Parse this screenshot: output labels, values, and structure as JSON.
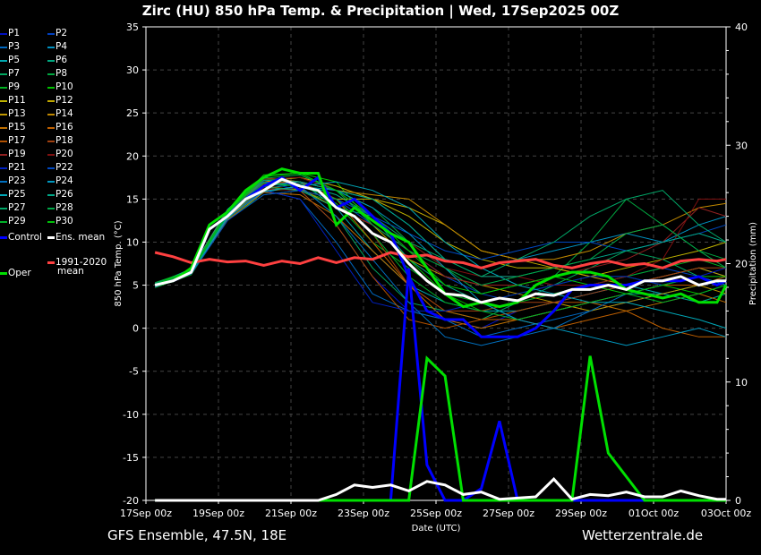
{
  "title": "Zirc  (HU)  850 hPa Temp. & Precipitation | Wed, 17Sep2025 00Z",
  "footer_left": "GFS Ensemble, 47.5N, 18E",
  "footer_right": "Wetterzentrale.de",
  "chart_data": {
    "type": "line",
    "xlabel": "Date (UTC)",
    "ylabel": "850 hPa Temp. (°C)",
    "y2label": "Precipitation (mm)",
    "ylim": [
      -20,
      35
    ],
    "y2lim": [
      0,
      40
    ],
    "xlim_hours": [
      0,
      384
    ],
    "x_ticks": [
      "17Sep 00z",
      "19Sep 00z",
      "21Sep 00z",
      "23Sep 00z",
      "25Sep 00z",
      "27Sep 00z",
      "29Sep 00z",
      "01Oct 00z",
      "03Oct 00z"
    ],
    "y_ticks": [
      35,
      30,
      25,
      20,
      15,
      10,
      5,
      0,
      -5,
      -10,
      -15,
      -20
    ],
    "y2_ticks": [
      40,
      30,
      20,
      10,
      0
    ],
    "grid": true,
    "hours_main": [
      6,
      18,
      30,
      42,
      54,
      66,
      78,
      90,
      102,
      114,
      126,
      138,
      150,
      162,
      174,
      186,
      198,
      210,
      222,
      234,
      246,
      258,
      270,
      282,
      294,
      306,
      318,
      330,
      342,
      354,
      366,
      378,
      384
    ],
    "hours_members": [
      6,
      30,
      54,
      78,
      102,
      126,
      150,
      174,
      198,
      222,
      246,
      270,
      294,
      318,
      342,
      366,
      384
    ],
    "main_series": [
      {
        "name": "Control",
        "color": "#0000ff",
        "width": 3,
        "temp": [
          5,
          5.5,
          6.5,
          11.5,
          13,
          15,
          16.5,
          17.5,
          16,
          17.5,
          14,
          15,
          13,
          11,
          6,
          2,
          1,
          1,
          -1,
          -1,
          -1,
          0,
          2,
          4.5,
          5,
          5,
          5,
          5.5,
          5.5,
          5.5,
          6,
          5,
          5.5
        ],
        "precip": [
          0,
          0,
          0,
          0,
          0,
          0,
          0,
          0,
          0,
          0,
          0,
          0,
          0,
          0,
          19.6,
          3,
          0,
          0,
          1,
          6.7,
          0,
          0,
          0,
          0,
          0,
          0,
          0,
          0,
          0,
          0,
          0,
          0,
          0
        ]
      },
      {
        "name": "Oper",
        "color": "#00e000",
        "width": 3,
        "temp": [
          5,
          5.5,
          7,
          12,
          13.5,
          16,
          17.5,
          18.5,
          18,
          18,
          12,
          14,
          12.5,
          11,
          10,
          7,
          4,
          2.5,
          3,
          2.5,
          3,
          5,
          6,
          6.5,
          6.5,
          6,
          4.5,
          4,
          3.5,
          4,
          3,
          3,
          5
        ],
        "precip": [
          0,
          0,
          0,
          0,
          0,
          0,
          0,
          0,
          0,
          0,
          0,
          0,
          0,
          0,
          0,
          12,
          10.5,
          0,
          0,
          0,
          0,
          0,
          0,
          0,
          12.2,
          4,
          2,
          0,
          0,
          0,
          0,
          0,
          0
        ]
      },
      {
        "name": "1991-2020 mean",
        "color": "#ff4040",
        "width": 3,
        "temp": [
          8.8,
          8.3,
          7.6,
          8,
          7.7,
          7.8,
          7.3,
          7.8,
          7.5,
          8.2,
          7.6,
          8.2,
          8,
          8.8,
          8.3,
          8.5,
          7.8,
          7.6,
          7,
          7.6,
          7.8,
          8,
          7.3,
          7,
          7.5,
          7.8,
          7.3,
          7.5,
          7,
          7.8,
          8,
          7.8,
          8
        ]
      },
      {
        "name": "Ens. mean",
        "color": "#ffffff",
        "width": 3,
        "temp": [
          5,
          5.5,
          6.5,
          11.5,
          13,
          15,
          16,
          17.3,
          16.5,
          16,
          14,
          13,
          11,
          10,
          7.5,
          5.5,
          4,
          3.8,
          3,
          3.5,
          3.2,
          4,
          3.8,
          4.5,
          4.5,
          5,
          4.5,
          5.5,
          5.5,
          6,
          5,
          5.5,
          5.5
        ],
        "precip": [
          0,
          0,
          0,
          0,
          0,
          0,
          0,
          0,
          0,
          0,
          0.5,
          1.3,
          1.1,
          1.3,
          0.8,
          1.6,
          1.3,
          0.5,
          0.7,
          0.1,
          0.2,
          0.3,
          1.8,
          0.1,
          0.5,
          0.4,
          0.7,
          0.3,
          0.3,
          0.8,
          0.4,
          0.1,
          0.1
        ]
      }
    ],
    "members": [
      {
        "name": "P1",
        "color": "#0010c0",
        "temp": [
          5,
          6.8,
          13.5,
          17,
          16,
          12,
          6,
          2,
          1,
          0,
          2,
          3,
          4,
          5,
          6,
          7,
          6
        ]
      },
      {
        "name": "P2",
        "color": "#0040c0",
        "temp": [
          5.2,
          6.4,
          12.8,
          16.5,
          17,
          15,
          12,
          9,
          6,
          4,
          3,
          4,
          5,
          6,
          7,
          6,
          5
        ]
      },
      {
        "name": "P3",
        "color": "#0068c0",
        "temp": [
          4.8,
          6.6,
          13.2,
          16,
          15,
          10,
          4,
          2,
          1,
          -1,
          0,
          1,
          2,
          3,
          4,
          3,
          4
        ]
      },
      {
        "name": "P4",
        "color": "#0090c0",
        "temp": [
          5,
          6.3,
          12.5,
          15.8,
          16.5,
          16,
          15,
          12,
          8,
          7,
          8,
          9,
          10,
          11,
          10,
          12,
          13
        ]
      },
      {
        "name": "P5",
        "color": "#00a8b0",
        "temp": [
          5.1,
          6.9,
          13.8,
          17.5,
          17,
          14,
          9,
          5,
          3,
          2,
          2,
          3,
          4,
          5,
          4,
          5,
          6
        ]
      },
      {
        "name": "P6",
        "color": "#00a880",
        "temp": [
          4.9,
          6.5,
          13,
          16.2,
          16.8,
          15.5,
          13,
          8,
          5,
          3,
          1,
          2,
          3,
          4,
          4,
          3,
          4
        ]
      },
      {
        "name": "P7",
        "color": "#00a860",
        "temp": [
          5,
          6.6,
          12.9,
          16.8,
          16.5,
          13,
          7,
          3,
          2,
          1,
          3,
          5,
          7,
          9,
          8,
          6,
          5
        ]
      },
      {
        "name": "P8",
        "color": "#00a840",
        "temp": [
          5.3,
          6.7,
          13.4,
          17.2,
          17.5,
          16,
          14,
          10,
          7,
          4,
          5,
          6,
          10,
          15,
          12,
          9,
          8
        ]
      },
      {
        "name": "P9",
        "color": "#00b020",
        "temp": [
          4.7,
          6.2,
          12.7,
          15.5,
          16,
          14.5,
          10,
          7,
          4,
          3,
          4,
          5,
          6,
          6,
          7,
          8,
          7
        ]
      },
      {
        "name": "P10",
        "color": "#00c000",
        "temp": [
          5.2,
          6.8,
          13.6,
          17.8,
          18,
          17,
          12,
          8,
          4,
          2,
          3,
          4,
          5,
          6,
          5,
          4,
          5
        ]
      },
      {
        "name": "P11",
        "color": "#c0b400",
        "temp": [
          5,
          6.4,
          13,
          16.4,
          16,
          15,
          15,
          13,
          10,
          8,
          7,
          7,
          6,
          7,
          8,
          9,
          10
        ]
      },
      {
        "name": "P12",
        "color": "#c0a800",
        "temp": [
          5.1,
          6.6,
          13.3,
          17,
          17.5,
          16.5,
          15,
          14,
          12,
          9,
          8,
          7,
          6,
          5,
          6,
          7,
          6
        ]
      },
      {
        "name": "P13",
        "color": "#c09800",
        "temp": [
          4.9,
          6.5,
          12.9,
          16,
          16.2,
          14,
          12,
          8,
          6,
          5,
          4,
          3,
          2,
          3,
          4,
          5,
          4
        ]
      },
      {
        "name": "P14",
        "color": "#c08800",
        "temp": [
          5,
          6.7,
          13.5,
          17.5,
          17,
          16,
          15.5,
          15,
          12,
          9,
          8,
          8,
          9,
          11,
          12,
          14,
          14.5
        ]
      },
      {
        "name": "P15",
        "color": "#c07000",
        "temp": [
          5.2,
          6.3,
          12.6,
          15.8,
          15.5,
          13,
          9,
          5,
          1,
          0,
          1,
          2,
          3,
          2,
          3,
          4,
          3
        ]
      },
      {
        "name": "P16",
        "color": "#c06000",
        "temp": [
          4.8,
          6.9,
          13.7,
          17,
          17,
          15,
          10,
          5,
          2,
          1,
          1,
          0,
          1,
          2,
          0,
          -1,
          -1
        ]
      },
      {
        "name": "P17",
        "color": "#b05000",
        "temp": [
          5,
          6.5,
          13,
          16.5,
          16,
          12,
          6,
          1,
          0,
          1,
          2,
          3,
          3,
          4,
          5,
          5,
          6
        ]
      },
      {
        "name": "P18",
        "color": "#a04010",
        "temp": [
          5.1,
          6.4,
          13.1,
          16.8,
          17,
          15,
          11,
          5,
          2,
          2,
          3,
          3,
          4,
          5,
          6,
          7,
          7
        ]
      },
      {
        "name": "P19",
        "color": "#902020",
        "temp": [
          4.9,
          6.6,
          13.2,
          16.2,
          16,
          14,
          12,
          9,
          6,
          5,
          5,
          6,
          7,
          8,
          10,
          14,
          13
        ]
      },
      {
        "name": "P20",
        "color": "#801010",
        "temp": [
          5,
          6.8,
          13.4,
          17.3,
          17.5,
          16,
          13,
          10,
          7,
          6,
          6,
          5,
          5,
          6,
          8,
          15,
          15
        ]
      },
      {
        "name": "P21",
        "color": "#0020c0",
        "temp": [
          5.2,
          6.5,
          12.8,
          16,
          15,
          9,
          3,
          2,
          2,
          3,
          4,
          5,
          6,
          6,
          5,
          6,
          7
        ]
      },
      {
        "name": "P22",
        "color": "#0048c0",
        "temp": [
          4.8,
          6.3,
          12.5,
          15.5,
          16,
          15,
          13,
          11,
          9,
          8,
          9,
          10,
          10,
          9,
          10,
          11,
          12
        ]
      },
      {
        "name": "P23",
        "color": "#0070c0",
        "temp": [
          5.1,
          6.7,
          13.3,
          17,
          16.5,
          13,
          8,
          3,
          -1,
          -2,
          -1,
          0,
          2,
          4,
          5,
          6,
          5
        ]
      },
      {
        "name": "P24",
        "color": "#0098c0",
        "temp": [
          5,
          6.6,
          13,
          16.6,
          17,
          16,
          14,
          11,
          7,
          3,
          1,
          0,
          -1,
          -2,
          -1,
          0,
          -1
        ]
      },
      {
        "name": "P25",
        "color": "#00a8b8",
        "temp": [
          4.9,
          6.4,
          12.8,
          15.9,
          16.5,
          17,
          16,
          14,
          10,
          7,
          5,
          4,
          3,
          3,
          2,
          1,
          0
        ]
      },
      {
        "name": "P26",
        "color": "#00a888",
        "temp": [
          5,
          6.9,
          13.6,
          17.2,
          17,
          16,
          15,
          12,
          8,
          6,
          6,
          7,
          8,
          9,
          10,
          11,
          10
        ]
      },
      {
        "name": "P27",
        "color": "#00a868",
        "temp": [
          5.2,
          6.5,
          13.1,
          16.4,
          16,
          14,
          13,
          10,
          8,
          6,
          8,
          10,
          13,
          15,
          16,
          12,
          10
        ]
      },
      {
        "name": "P28",
        "color": "#00a848",
        "temp": [
          4.9,
          6.7,
          13.4,
          17.4,
          17.8,
          16,
          12,
          9,
          7,
          5,
          6,
          7,
          8,
          11,
          12,
          9,
          7
        ]
      },
      {
        "name": "P29",
        "color": "#00b028",
        "temp": [
          5.1,
          6.6,
          13.2,
          16.9,
          16.5,
          15,
          11,
          6,
          3,
          2,
          1,
          2,
          3,
          4,
          3,
          4,
          5
        ]
      },
      {
        "name": "P30",
        "color": "#00c008",
        "temp": [
          5,
          6.8,
          13.5,
          17.6,
          18,
          16,
          13,
          9,
          5,
          4,
          5,
          6,
          5,
          4,
          5,
          6,
          6
        ]
      }
    ],
    "legend": {
      "control": "Control",
      "mean": "Ens. mean",
      "clim": "1991-2020",
      "clim2": "mean",
      "oper": "Oper"
    }
  }
}
